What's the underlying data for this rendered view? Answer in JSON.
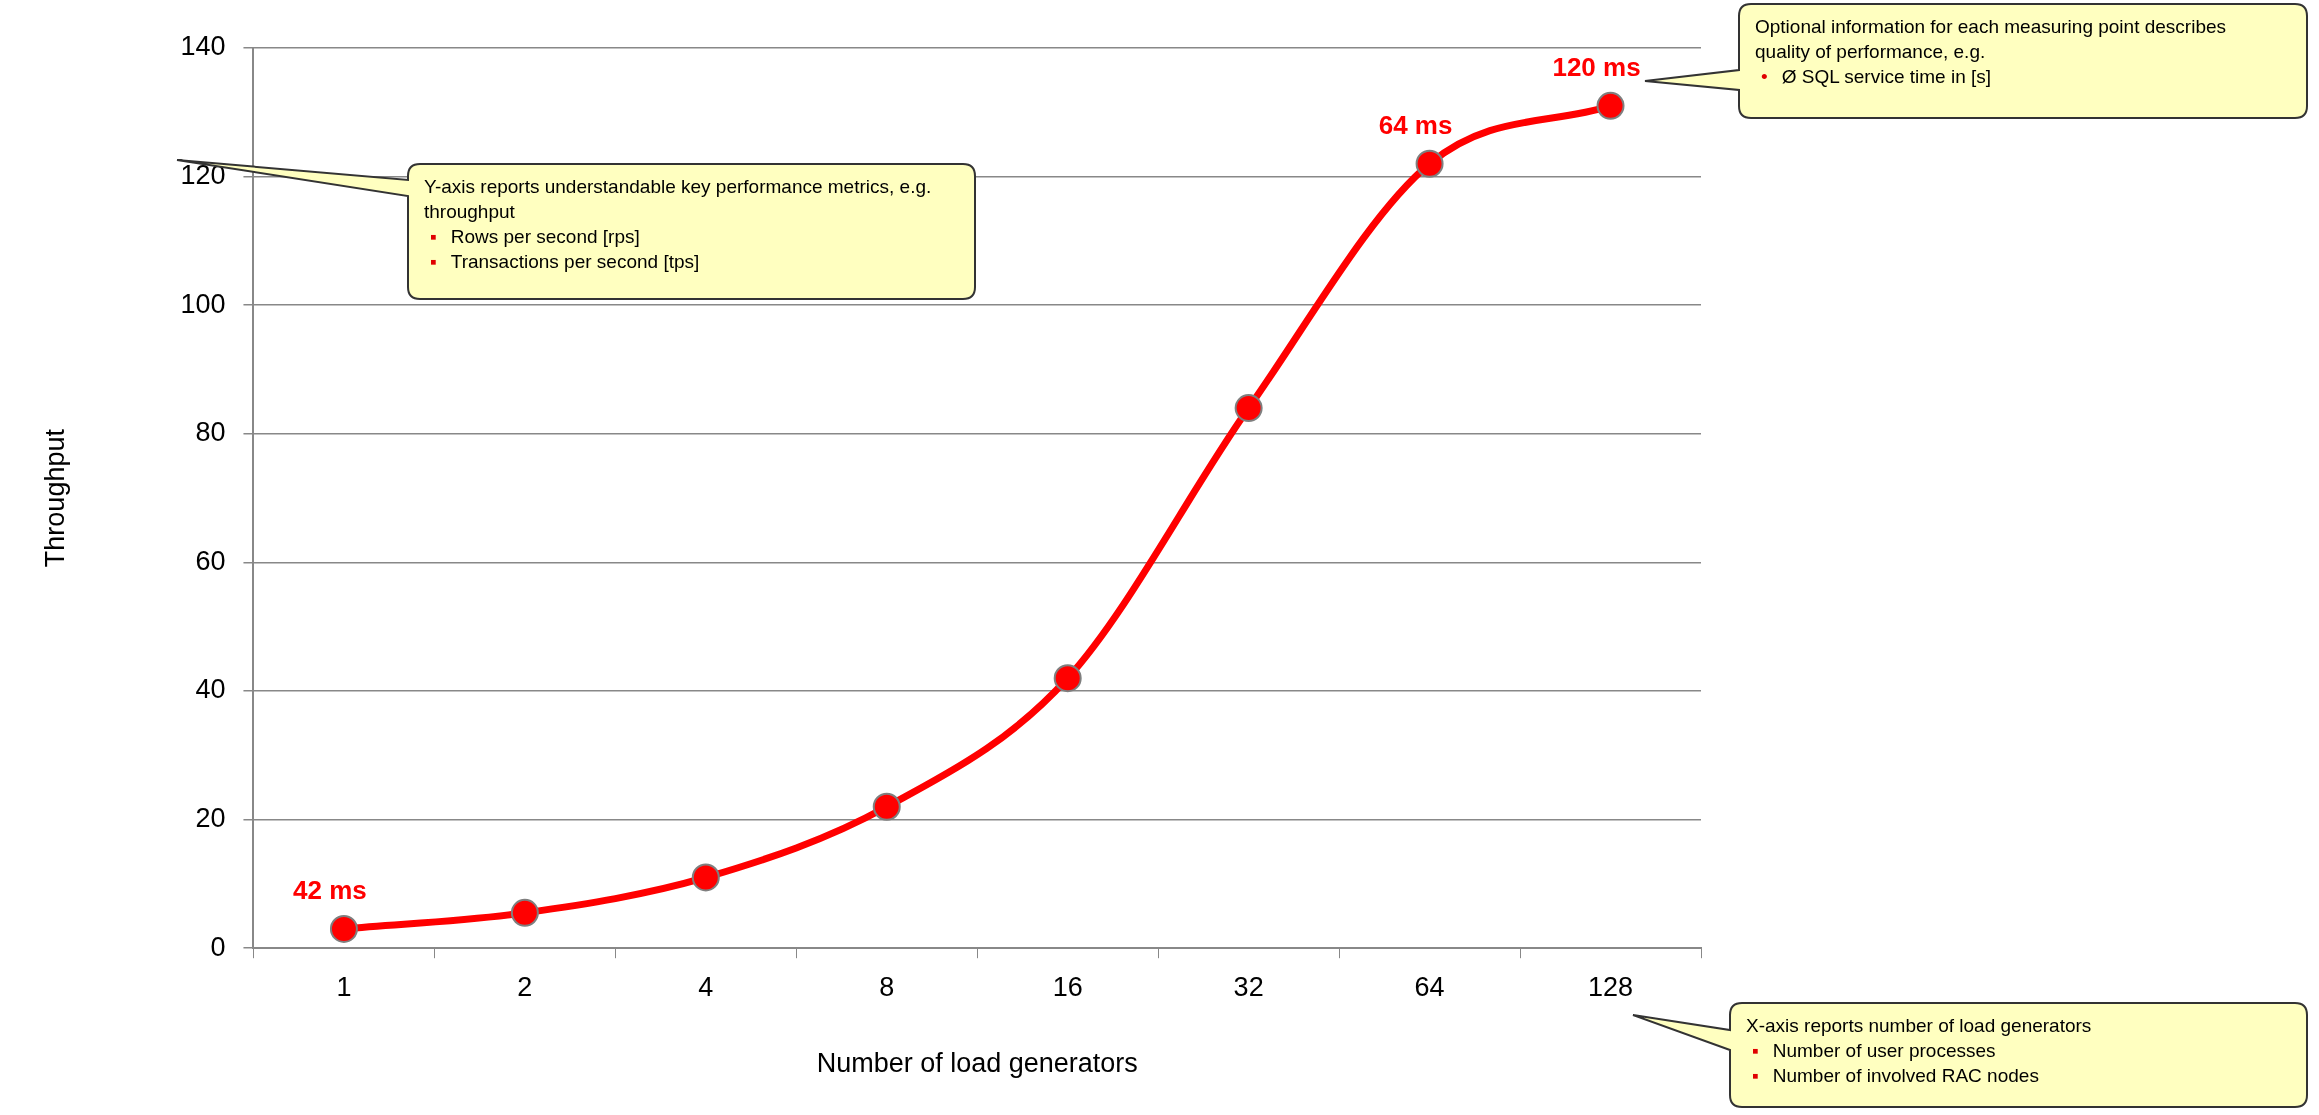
{
  "chart_data": {
    "type": "line",
    "xlabel": "Number of load generators",
    "ylabel": "Throughput",
    "categories": [
      "1",
      "2",
      "4",
      "8",
      "16",
      "32",
      "64",
      "128"
    ],
    "series": [
      {
        "color": "#ff0000",
        "values": [
          3,
          5.5,
          11,
          22,
          42,
          84,
          122,
          131
        ]
      }
    ],
    "ylim": [
      0,
      140
    ],
    "yticks": [
      0,
      20,
      40,
      60,
      80,
      100,
      120,
      140
    ],
    "grid": "y",
    "legend": false,
    "marker": "circle",
    "line_style": "solid",
    "annotations": [
      {
        "text": "42 ms",
        "x": "1",
        "y": 3
      },
      {
        "text": "64 ms",
        "x": "64",
        "y": 122
      },
      {
        "text": "120 ms",
        "x": "128",
        "y": 131
      },
      "Y-axis reports understandable key performance metrics, e.g. throughput\n▪ Rows per second [rps]\n▪ Transactions per second [tps]",
      "Optional information for each measuring point describes quality of performance, e.g.\n• Ø SQL service time in [s]",
      "X-axis reports number of load generators\n▪ Number of user processes\n▪ Number of involved RAC nodes"
    ]
  }
}
